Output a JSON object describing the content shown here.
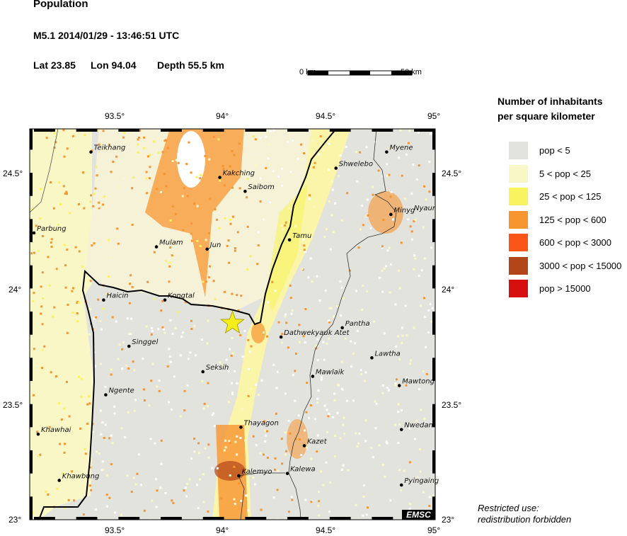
{
  "header": {
    "title": "Population",
    "event": "M5.1  2014/01/29 - 13:46:51 UTC",
    "lat_label": "Lat 23.85",
    "lon_label": "Lon  94.04",
    "depth_label": "Depth  55.5 km"
  },
  "scale_bar": {
    "start_label": "0 km",
    "end_label": "50 km"
  },
  "axes": {
    "lon_ticks": [
      "93.5°",
      "94°",
      "94.5°",
      "95°"
    ],
    "lon_values": [
      93.5,
      94.0,
      94.5,
      95.0
    ],
    "lat_ticks": [
      "24.5°",
      "24°",
      "23.5°",
      "23°"
    ],
    "lat_values": [
      24.5,
      24.0,
      23.5,
      23.0
    ],
    "lon_range": [
      93.08,
      95.0
    ],
    "lat_range": [
      23.0,
      24.69
    ]
  },
  "epicenter": {
    "lat": 23.85,
    "lon": 94.04,
    "color": "#f5ee1a"
  },
  "cities": [
    {
      "name": "Teikhang",
      "lon": 93.37,
      "lat": 24.59
    },
    {
      "name": "Kakching",
      "lon": 93.98,
      "lat": 24.48
    },
    {
      "name": "Saibom",
      "lon": 94.1,
      "lat": 24.42
    },
    {
      "name": "Parbung",
      "lon": 93.1,
      "lat": 24.24
    },
    {
      "name": "Mulam",
      "lon": 93.68,
      "lat": 24.18
    },
    {
      "name": "Jun",
      "lon": 93.92,
      "lat": 24.17
    },
    {
      "name": "Tamu",
      "lon": 94.31,
      "lat": 24.21
    },
    {
      "name": "Shwelebo",
      "lon": 94.53,
      "lat": 24.52
    },
    {
      "name": "Myene",
      "lon": 94.77,
      "lat": 24.59
    },
    {
      "name": "Minyg",
      "lon": 94.79,
      "lat": 24.32
    },
    {
      "name": "Haicin",
      "lon": 93.43,
      "lat": 23.95
    },
    {
      "name": "Kongtal",
      "lon": 93.72,
      "lat": 23.95
    },
    {
      "name": "Pantha",
      "lon": 94.56,
      "lat": 23.83
    },
    {
      "name": "Dathwekyauk Atet",
      "lon": 94.27,
      "lat": 23.79
    },
    {
      "name": "Singgel",
      "lon": 93.55,
      "lat": 23.75
    },
    {
      "name": "Lawtha",
      "lon": 94.7,
      "lat": 23.7
    },
    {
      "name": "Seksih",
      "lon": 93.9,
      "lat": 23.64
    },
    {
      "name": "Mawlaik",
      "lon": 94.42,
      "lat": 23.62
    },
    {
      "name": "Mawtong",
      "lon": 94.83,
      "lat": 23.58
    },
    {
      "name": "Ngente",
      "lon": 93.44,
      "lat": 23.54
    },
    {
      "name": "Thayagon",
      "lon": 94.08,
      "lat": 23.4
    },
    {
      "name": "Khawhai",
      "lon": 93.12,
      "lat": 23.37
    },
    {
      "name": "Nwedan",
      "lon": 94.84,
      "lat": 23.39
    },
    {
      "name": "Kazet",
      "lon": 94.38,
      "lat": 23.32
    },
    {
      "name": "Kalemyo",
      "lon": 94.07,
      "lat": 23.19
    },
    {
      "name": "Kalewa",
      "lon": 94.3,
      "lat": 23.2
    },
    {
      "name": "Khawbung",
      "lon": 93.22,
      "lat": 23.17
    },
    {
      "name": "Pyingaing",
      "lon": 94.84,
      "lat": 23.15
    }
  ],
  "edge_label": "Nyaur",
  "legend": {
    "title_line1": "Number of inhabitants",
    "title_line2": "per square kilometer",
    "items": [
      {
        "label": "pop < 5",
        "color": "#e3e3de"
      },
      {
        "label": "5 < pop < 25",
        "color": "#faf7c6"
      },
      {
        "label": "25 < pop < 125",
        "color": "#f8f35e"
      },
      {
        "label": "125 < pop < 600",
        "color": "#f7952f"
      },
      {
        "label": "600 < pop < 3000",
        "color": "#fb5518"
      },
      {
        "label": "3000 < pop < 15000",
        "color": "#b2461a"
      },
      {
        "label": "pop > 15000",
        "color": "#d60f0f"
      }
    ]
  },
  "footer": {
    "line1": "Restricted use:",
    "line2": "redistribution forbidden",
    "logo": "EMSC"
  }
}
